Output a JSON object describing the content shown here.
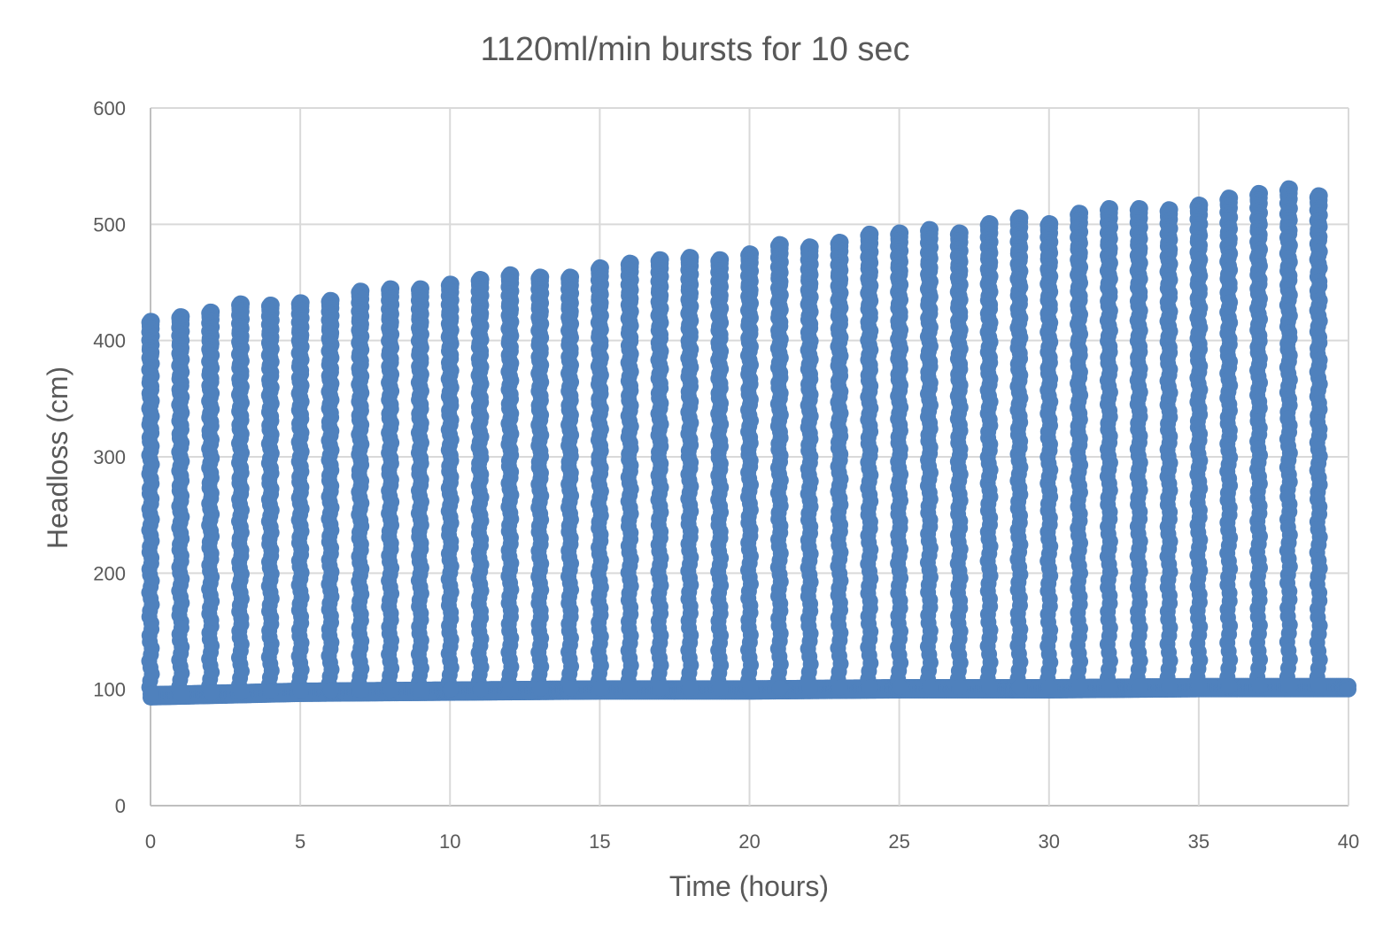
{
  "chart_data": {
    "type": "scatter",
    "title": "1120ml/min bursts for 10 sec",
    "xlabel": "Time (hours)",
    "ylabel": "Headloss (cm)",
    "xlim": [
      0,
      40
    ],
    "ylim": [
      0,
      600
    ],
    "x_ticks": [
      "0",
      "5",
      "10",
      "15",
      "20",
      "25",
      "30",
      "35",
      "40"
    ],
    "y_ticks": [
      "0",
      "100",
      "200",
      "300",
      "400",
      "500",
      "600"
    ],
    "grid": true,
    "legend": "none",
    "marker_color": "#4f81bd",
    "series": [
      {
        "baseline_headloss": {
          "x": [
            0,
            5,
            10,
            15,
            20,
            25,
            30,
            35,
            40
          ],
          "y": [
            96,
            99,
            100,
            101,
            101,
            102,
            102,
            103,
            103
          ]
        },
        "burst_times_hours": [
          0,
          1,
          2,
          3,
          4,
          5,
          6,
          7,
          8,
          9,
          10,
          11,
          12,
          13,
          14,
          15,
          16,
          17,
          18,
          19,
          20,
          21,
          22,
          23,
          24,
          25,
          26,
          27,
          28,
          29,
          30,
          31,
          32,
          33,
          34,
          35,
          36,
          37,
          38,
          39
        ],
        "burst_peak_headloss": [
          417,
          421,
          425,
          432,
          431,
          433,
          435,
          443,
          445,
          445,
          449,
          453,
          457,
          455,
          455,
          463,
          467,
          470,
          472,
          470,
          475,
          483,
          481,
          485,
          492,
          493,
          496,
          493,
          501,
          506,
          501,
          510,
          514,
          514,
          513,
          517,
          523,
          527,
          531,
          525
        ]
      }
    ]
  }
}
